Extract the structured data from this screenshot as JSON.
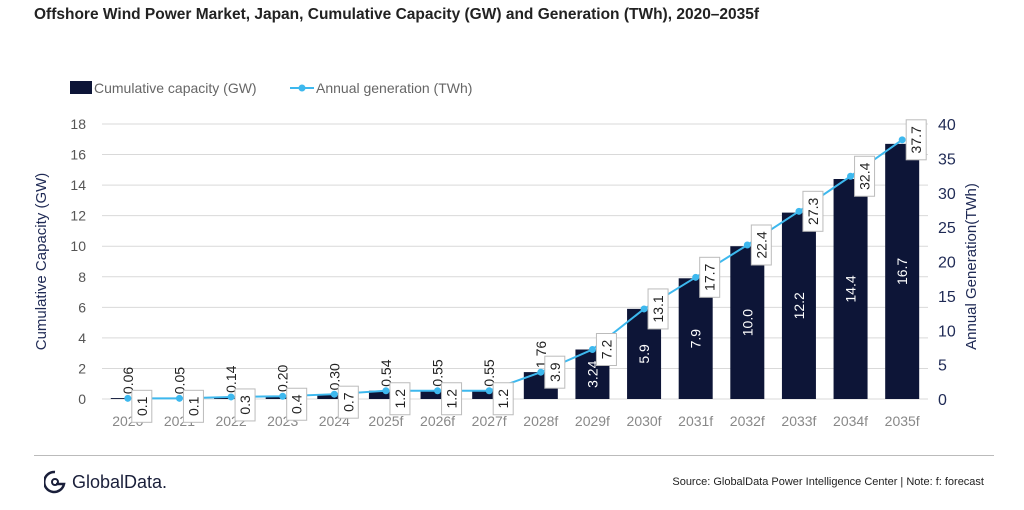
{
  "title": "Offshore Wind Power Market, Japan, Cumulative Capacity (GW) and Generation (TWh), 2020–2035f",
  "source": "Source: GlobalData Power Intelligence Center | Note: f: forecast",
  "logo": "GlobalData.",
  "chart_data": {
    "type": "bar+line",
    "categories": [
      "2020",
      "2021",
      "2022",
      "2023",
      "2024",
      "2025f",
      "2026f",
      "2027f",
      "2028f",
      "2029f",
      "2030f",
      "2031f",
      "2032f",
      "2033f",
      "2034f",
      "2035f"
    ],
    "series": [
      {
        "name": "Cumulative capacity (GW)",
        "type": "bar",
        "axis": "left",
        "color": "#0d1537",
        "values": [
          0.06,
          0.05,
          0.14,
          0.2,
          0.3,
          0.54,
          0.55,
          0.55,
          1.76,
          3.24,
          5.9,
          7.9,
          10.0,
          12.2,
          14.4,
          16.7
        ],
        "labels": [
          "0.06",
          "0.05",
          "0.14",
          "0.20",
          "0.30",
          "0.54",
          "0.55",
          "0.55",
          "1.76",
          "3.24",
          "5.9",
          "7.9",
          "10.0",
          "12.2",
          "14.4",
          "16.7"
        ]
      },
      {
        "name": "Annual generation (TWh)",
        "type": "line",
        "axis": "right",
        "color": "#3db8ee",
        "values": [
          0.1,
          0.1,
          0.3,
          0.4,
          0.7,
          1.2,
          1.2,
          1.2,
          3.9,
          7.2,
          13.1,
          17.7,
          22.4,
          27.3,
          32.4,
          37.7
        ],
        "labels": [
          "0.1",
          "0.1",
          "0.3",
          "0.4",
          "0.7",
          "1.2",
          "1.2",
          "1.2",
          "3.9",
          "7.2",
          "13.1",
          "17.7",
          "22.4",
          "27.3",
          "32.4",
          "37.7"
        ]
      }
    ],
    "ylabel": "Cumulative Capacity (GW)",
    "y2label": "Annual Generation(TWh)",
    "ylim": [
      0,
      18
    ],
    "yticks": [
      "0",
      "2",
      "4",
      "6",
      "8",
      "10",
      "12",
      "14",
      "16",
      "18"
    ],
    "y2lim": [
      0,
      40
    ],
    "y2ticks": [
      "0",
      "5",
      "10",
      "15",
      "20",
      "25",
      "30",
      "35",
      "40"
    ],
    "grid": true,
    "legend": "top-left"
  }
}
